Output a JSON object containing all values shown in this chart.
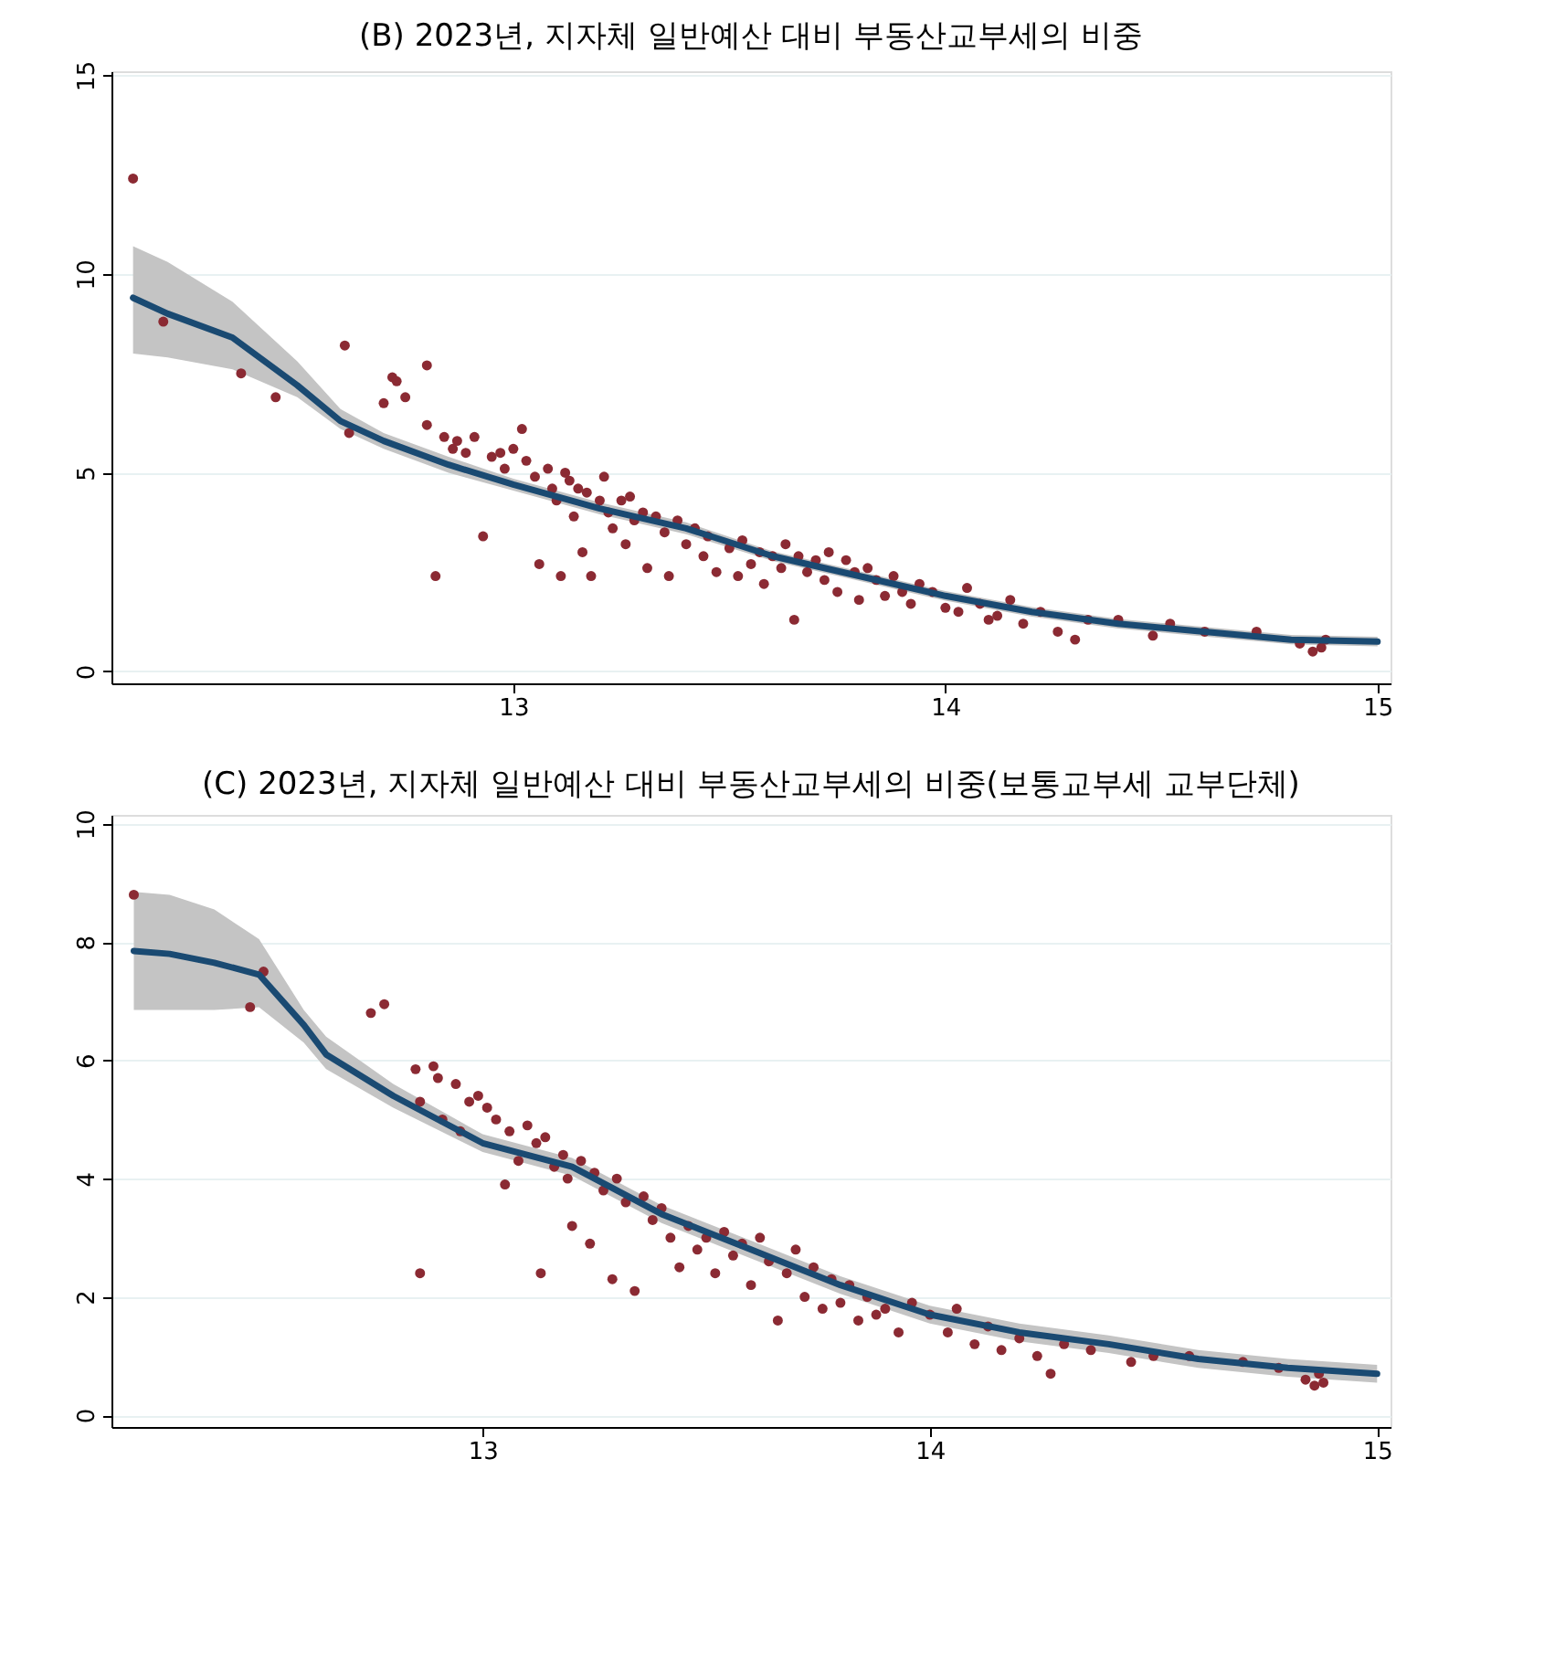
{
  "chart_data": [
    {
      "type": "scatter",
      "title": "(B) 2023년, 지자체 일반예산 대비 부동산교부세의 비중",
      "xlim": [
        12.07,
        15.03
      ],
      "ylim": [
        -0.3,
        15.1
      ],
      "xticks": [
        13,
        14,
        15
      ],
      "yticks": [
        0,
        5,
        10,
        15
      ],
      "grid": "y",
      "series": [
        {
          "type": "scatter",
          "color": "#8b2a33",
          "marker": "circle",
          "x": [
            12.12,
            12.19,
            12.37,
            12.45,
            12.61,
            12.62,
            12.7,
            12.72,
            12.73,
            12.75,
            12.8,
            12.8,
            12.82,
            12.84,
            12.86,
            12.87,
            12.89,
            12.91,
            12.93,
            12.95,
            12.97,
            12.98,
            13.0,
            13.02,
            13.03,
            13.05,
            13.06,
            13.08,
            13.09,
            13.1,
            13.11,
            13.12,
            13.13,
            13.14,
            13.15,
            13.16,
            13.17,
            13.18,
            13.2,
            13.21,
            13.22,
            13.23,
            13.25,
            13.26,
            13.27,
            13.28,
            13.3,
            13.31,
            13.33,
            13.35,
            13.36,
            13.38,
            13.4,
            13.42,
            13.44,
            13.45,
            13.47,
            13.5,
            13.52,
            13.53,
            13.55,
            13.57,
            13.58,
            13.6,
            13.62,
            13.63,
            13.65,
            13.66,
            13.68,
            13.7,
            13.72,
            13.73,
            13.75,
            13.77,
            13.79,
            13.8,
            13.82,
            13.84,
            13.86,
            13.88,
            13.9,
            13.92,
            13.94,
            13.97,
            14.0,
            14.03,
            14.05,
            14.08,
            14.1,
            14.12,
            14.15,
            14.18,
            14.22,
            14.26,
            14.3,
            14.33,
            14.4,
            14.48,
            14.52,
            14.6,
            14.72,
            14.82,
            14.85,
            14.87,
            14.88
          ],
          "values": [
            12.4,
            8.8,
            7.5,
            6.9,
            8.2,
            6.0,
            6.75,
            7.4,
            7.3,
            6.9,
            7.7,
            6.2,
            2.4,
            5.9,
            5.6,
            5.8,
            5.5,
            5.9,
            3.4,
            5.4,
            5.5,
            5.1,
            5.6,
            6.1,
            5.3,
            4.9,
            2.7,
            5.1,
            4.6,
            4.3,
            2.4,
            5.0,
            4.8,
            3.9,
            4.6,
            3.0,
            4.5,
            2.4,
            4.3,
            4.9,
            4.0,
            3.6,
            4.3,
            3.2,
            4.4,
            3.8,
            4.0,
            2.6,
            3.9,
            3.5,
            2.4,
            3.8,
            3.2,
            3.6,
            2.9,
            3.4,
            2.5,
            3.1,
            2.4,
            3.3,
            2.7,
            3.0,
            2.2,
            2.9,
            2.6,
            3.2,
            1.3,
            2.9,
            2.5,
            2.8,
            2.3,
            3.0,
            2.0,
            2.8,
            2.5,
            1.8,
            2.6,
            2.3,
            1.9,
            2.4,
            2.0,
            1.7,
            2.2,
            2.0,
            1.6,
            1.5,
            2.1,
            1.7,
            1.3,
            1.4,
            1.8,
            1.2,
            1.5,
            1.0,
            0.8,
            1.3,
            1.3,
            0.9,
            1.2,
            1.0,
            1.0,
            0.7,
            0.5,
            0.6,
            0.8
          ]
        },
        {
          "type": "line",
          "color": "#1a4a72",
          "x": [
            12.12,
            12.2,
            12.35,
            12.5,
            12.6,
            12.7,
            12.85,
            13.0,
            13.2,
            13.4,
            13.6,
            13.8,
            14.0,
            14.2,
            14.4,
            14.6,
            14.8,
            15.0
          ],
          "values": [
            9.4,
            9.0,
            8.4,
            7.2,
            6.3,
            5.8,
            5.2,
            4.7,
            4.1,
            3.6,
            2.9,
            2.4,
            1.9,
            1.5,
            1.2,
            1.0,
            0.8,
            0.75
          ],
          "lower": [
            8.0,
            7.9,
            7.6,
            6.9,
            6.1,
            5.6,
            5.0,
            4.55,
            3.95,
            3.45,
            2.78,
            2.28,
            1.78,
            1.38,
            1.08,
            0.88,
            0.68,
            0.63
          ],
          "upper": [
            10.7,
            10.3,
            9.3,
            7.8,
            6.6,
            6.0,
            5.4,
            4.85,
            4.25,
            3.75,
            3.02,
            2.52,
            2.02,
            1.62,
            1.32,
            1.12,
            0.92,
            0.87
          ]
        }
      ]
    },
    {
      "type": "scatter",
      "title": "(C) 2023년, 지자체 일반예산 대비 부동산교부세의 비중(보통교부세 교부단체)",
      "xlim": [
        12.17,
        15.03
      ],
      "ylim": [
        -0.2,
        10.15
      ],
      "xticks": [
        13,
        14,
        15
      ],
      "yticks": [
        0,
        2,
        4,
        6,
        8,
        10
      ],
      "grid": "y",
      "series": [
        {
          "type": "scatter",
          "color": "#8b2a33",
          "marker": "circle",
          "x": [
            12.22,
            12.48,
            12.51,
            12.75,
            12.78,
            12.85,
            12.86,
            12.86,
            12.89,
            12.9,
            12.91,
            12.94,
            12.95,
            12.97,
            12.99,
            13.01,
            13.03,
            13.05,
            13.06,
            13.08,
            13.1,
            13.12,
            13.13,
            13.14,
            13.16,
            13.18,
            13.19,
            13.2,
            13.22,
            13.24,
            13.25,
            13.27,
            13.29,
            13.3,
            13.32,
            13.34,
            13.36,
            13.38,
            13.4,
            13.42,
            13.44,
            13.46,
            13.48,
            13.5,
            13.52,
            13.54,
            13.56,
            13.58,
            13.6,
            13.62,
            13.64,
            13.66,
            13.68,
            13.7,
            13.72,
            13.74,
            13.76,
            13.78,
            13.8,
            13.82,
            13.84,
            13.86,
            13.88,
            13.9,
            13.93,
            13.96,
            14.0,
            14.04,
            14.06,
            14.1,
            14.13,
            14.16,
            14.2,
            14.24,
            14.27,
            14.3,
            14.36,
            14.45,
            14.5,
            14.58,
            14.7,
            14.78,
            14.84,
            14.86,
            14.87,
            14.88
          ],
          "values": [
            8.8,
            6.9,
            7.5,
            6.8,
            6.95,
            5.85,
            2.4,
            5.3,
            5.9,
            5.7,
            5.0,
            5.6,
            4.8,
            5.3,
            5.4,
            5.2,
            5.0,
            3.9,
            4.8,
            4.3,
            4.9,
            4.6,
            2.4,
            4.7,
            4.2,
            4.4,
            4.0,
            3.2,
            4.3,
            2.9,
            4.1,
            3.8,
            2.3,
            4.0,
            3.6,
            2.1,
            3.7,
            3.3,
            3.5,
            3.0,
            2.5,
            3.2,
            2.8,
            3.0,
            2.4,
            3.1,
            2.7,
            2.9,
            2.2,
            3.0,
            2.6,
            1.6,
            2.4,
            2.8,
            2.0,
            2.5,
            1.8,
            2.3,
            1.9,
            2.2,
            1.6,
            2.0,
            1.7,
            1.8,
            1.4,
            1.9,
            1.7,
            1.4,
            1.8,
            1.2,
            1.5,
            1.1,
            1.3,
            1.0,
            0.7,
            1.2,
            1.1,
            0.9,
            1.0,
            1.0,
            0.9,
            0.8,
            0.6,
            0.5,
            0.7,
            0.55
          ]
        },
        {
          "type": "line",
          "color": "#1a4a72",
          "x": [
            12.22,
            12.3,
            12.4,
            12.5,
            12.6,
            12.65,
            12.8,
            13.0,
            13.2,
            13.4,
            13.6,
            13.8,
            14.0,
            14.2,
            14.4,
            14.6,
            14.8,
            15.0
          ],
          "values": [
            7.85,
            7.8,
            7.65,
            7.45,
            6.6,
            6.1,
            5.4,
            4.6,
            4.2,
            3.4,
            2.8,
            2.2,
            1.7,
            1.4,
            1.2,
            0.95,
            0.8,
            0.7
          ],
          "lower": [
            6.85,
            6.85,
            6.85,
            6.9,
            6.3,
            5.85,
            5.2,
            4.45,
            4.05,
            3.25,
            2.65,
            2.05,
            1.55,
            1.25,
            1.05,
            0.8,
            0.65,
            0.55
          ],
          "upper": [
            8.85,
            8.8,
            8.55,
            8.05,
            6.85,
            6.4,
            5.6,
            4.75,
            4.35,
            3.55,
            2.95,
            2.35,
            1.85,
            1.55,
            1.35,
            1.1,
            0.95,
            0.85
          ]
        }
      ]
    }
  ]
}
